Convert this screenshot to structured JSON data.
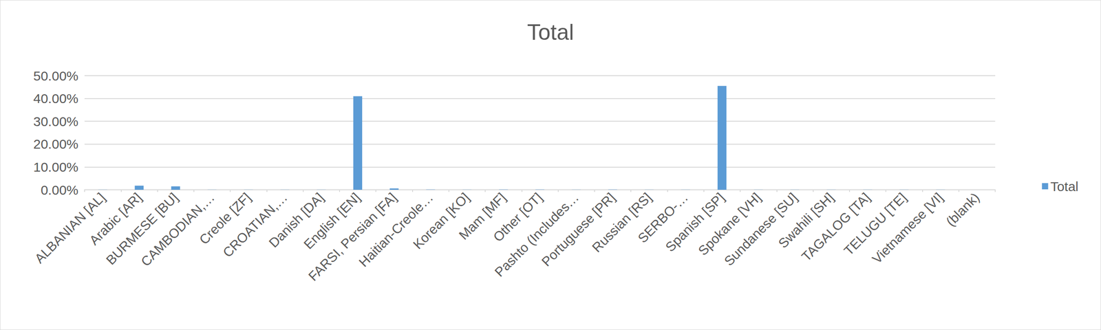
{
  "chart_data": {
    "type": "bar",
    "title": "Total",
    "categories": [
      "ALBANIAN [AL]",
      "Arabic [AR]",
      "BURMESE [BU]",
      "CAMBODIAN,…",
      "Creole [ZF]",
      "CROATIAN,…",
      "Danish [DA]",
      "English [EN]",
      "FARSI, Persian [FA]",
      "Haitian-Creole…",
      "Korean [KO]",
      "Mam [MF]",
      "Other [OT]",
      "Pashto (Includes…",
      "Portuguese [PR]",
      "Russian [RS]",
      "SERBO-…",
      "Spanish [SP]",
      "Spokane [VH]",
      "Sundanese [SU]",
      "Swahili [SH]",
      "TAGALOG [TA]",
      "TELUGU [TE]",
      "Vietnamese [VI]",
      "(blank)"
    ],
    "series": [
      {
        "name": "Total",
        "color": "#5b9bd5",
        "values": [
          0.05,
          1.8,
          1.5,
          0.05,
          0.05,
          0.05,
          0.05,
          41,
          0.6,
          0.1,
          0.05,
          0.1,
          0.1,
          0.05,
          0.1,
          0.05,
          0.05,
          45.5,
          0.05,
          0.05,
          0.05,
          0.05,
          0.05,
          0.05,
          0
        ]
      }
    ],
    "ylim": [
      0,
      50
    ],
    "yticks": [
      {
        "value": 0,
        "label": "0.00%"
      },
      {
        "value": 10,
        "label": "10.00%"
      },
      {
        "value": 20,
        "label": "20.00%"
      },
      {
        "value": 30,
        "label": "30.00%"
      },
      {
        "value": 40,
        "label": "40.00%"
      },
      {
        "value": 50,
        "label": "50.00%"
      }
    ],
    "grid": true,
    "legend": "right"
  }
}
